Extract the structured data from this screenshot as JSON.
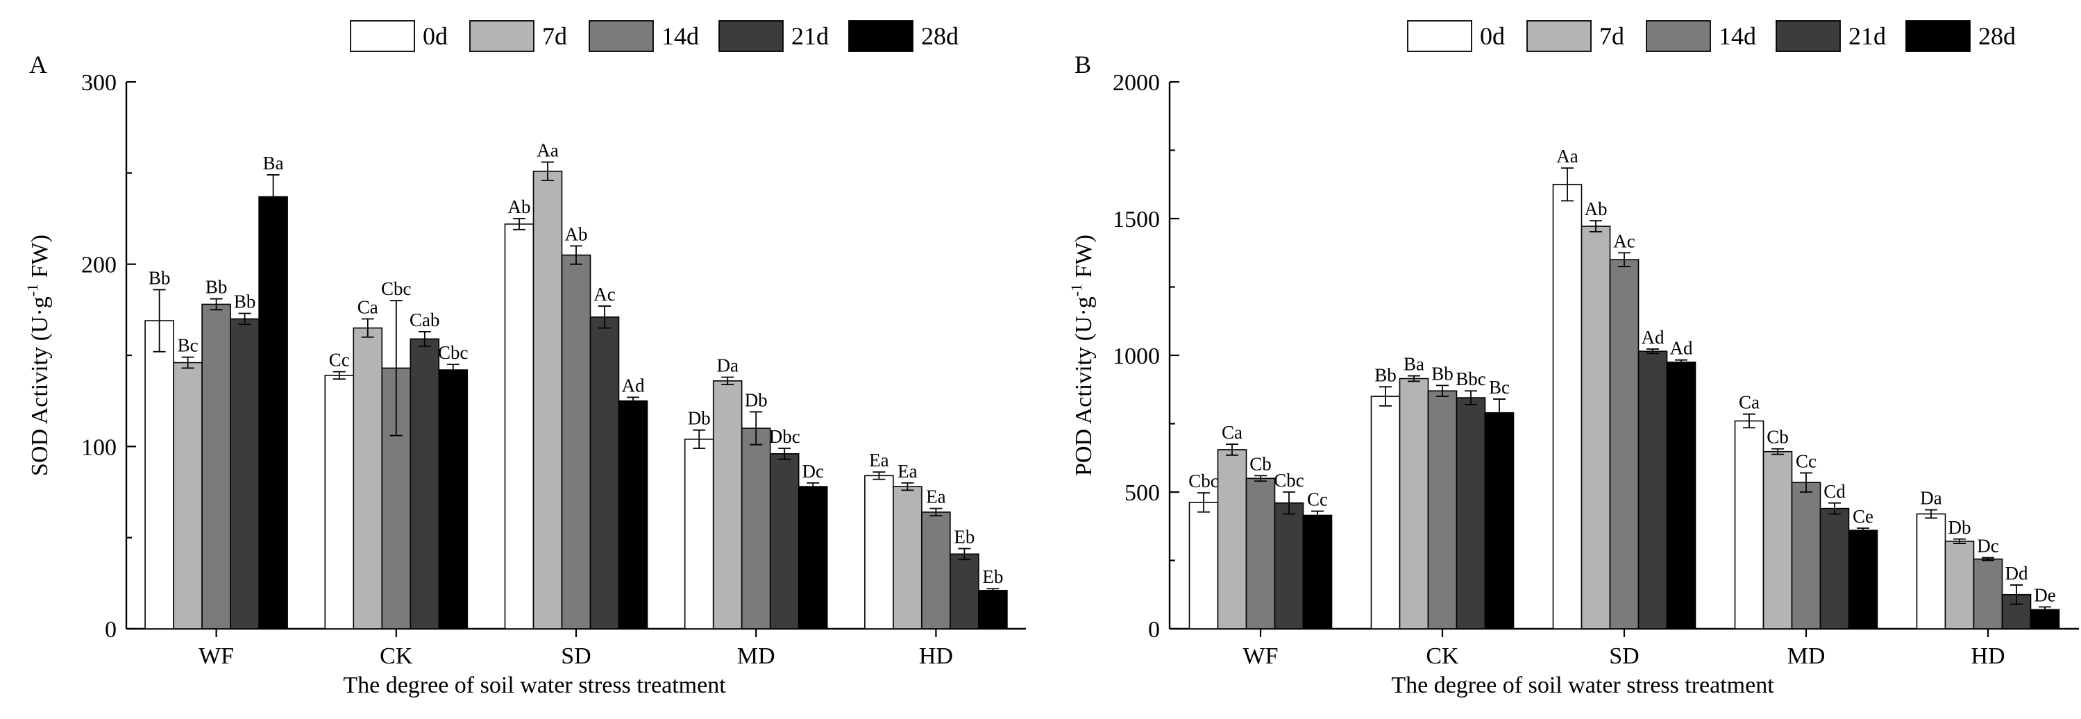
{
  "legend": [
    "0d",
    "7d",
    "14d",
    "21d",
    "28d"
  ],
  "colors": {
    "0d": "#ffffff",
    "7d": "#b4b4b6",
    "14d": "#7a7b7d",
    "21d": "#3c3c3e",
    "28d": "#000000"
  },
  "chart_data": [
    {
      "type": "bar",
      "panel": "A",
      "title": "",
      "xlabel": "The degree of soil water stress treatment",
      "ylabel": "SOD Activity (U·g⁻¹ FW)",
      "ylabel_parts": [
        "SOD Activity (U·g",
        "-1",
        " FW)"
      ],
      "ylim": [
        0,
        300
      ],
      "yticks": [
        0,
        100,
        200,
        300
      ],
      "categories": [
        "WF",
        "CK",
        "SD",
        "MD",
        "HD"
      ],
      "series": [
        {
          "name": "0d",
          "values": [
            169,
            139,
            222,
            104,
            84
          ],
          "errors": [
            17,
            2,
            3,
            5,
            2
          ],
          "labels": [
            "Bb",
            "Cc",
            "Ab",
            "Db",
            "Ea"
          ]
        },
        {
          "name": "7d",
          "values": [
            146,
            165,
            251,
            136,
            78
          ],
          "errors": [
            3,
            5,
            5,
            2,
            2
          ],
          "labels": [
            "Bc",
            "Ca",
            "Aa",
            "Da",
            "Ea"
          ]
        },
        {
          "name": "14d",
          "values": [
            178,
            143,
            205,
            110,
            64
          ],
          "errors": [
            3,
            37,
            5,
            9,
            2
          ],
          "labels": [
            "Bb",
            "Cbc",
            "Ab",
            "Db",
            "Ea"
          ]
        },
        {
          "name": "21d",
          "values": [
            170,
            159,
            171,
            96,
            41
          ],
          "errors": [
            3,
            4,
            6,
            3,
            3
          ],
          "labels": [
            "Bb",
            "Cab",
            "Ac",
            "Dbc",
            "Eb"
          ]
        },
        {
          "name": "28d",
          "values": [
            237,
            142,
            125,
            78,
            21
          ],
          "errors": [
            12,
            3,
            2,
            2,
            1
          ],
          "labels": [
            "Ba",
            "Cbc",
            "Ad",
            "Dc",
            "Eb"
          ]
        }
      ]
    },
    {
      "type": "bar",
      "panel": "B",
      "title": "",
      "xlabel": "The degree of soil water stress treatment",
      "ylabel": "POD Activity (U·g⁻¹ FW)",
      "ylabel_parts": [
        "POD Activity (U·g",
        "-1",
        " FW)"
      ],
      "ylim": [
        0,
        2000
      ],
      "yticks": [
        0,
        500,
        1000,
        1500,
        2000
      ],
      "categories": [
        "WF",
        "CK",
        "SD",
        "MD",
        "HD"
      ],
      "series": [
        {
          "name": "0d",
          "values": [
            462,
            850,
            1625,
            760,
            420
          ],
          "errors": [
            35,
            35,
            60,
            25,
            15
          ],
          "labels": [
            "Cbc",
            "Bb",
            "Aa",
            "Ca",
            "Da"
          ]
        },
        {
          "name": "7d",
          "values": [
            655,
            915,
            1472,
            648,
            320
          ],
          "errors": [
            20,
            10,
            20,
            10,
            8
          ],
          "labels": [
            "Ca",
            "Ba",
            "Ab",
            "Cb",
            "Db"
          ]
        },
        {
          "name": "14d",
          "values": [
            550,
            870,
            1350,
            535,
            255
          ],
          "errors": [
            10,
            20,
            25,
            35,
            5
          ],
          "labels": [
            "Cb",
            "Bb",
            "Ac",
            "Cc",
            "Dc"
          ]
        },
        {
          "name": "21d",
          "values": [
            460,
            845,
            1015,
            440,
            125
          ],
          "errors": [
            40,
            25,
            8,
            20,
            35
          ],
          "labels": [
            "Cbc",
            "Bbc",
            "Ad",
            "Cd",
            "Dd"
          ]
        },
        {
          "name": "28d",
          "values": [
            415,
            790,
            975,
            360,
            70
          ],
          "errors": [
            15,
            50,
            8,
            8,
            10
          ],
          "labels": [
            "Cc",
            "Bc",
            "Ad",
            "Ce",
            "De"
          ]
        }
      ]
    }
  ]
}
